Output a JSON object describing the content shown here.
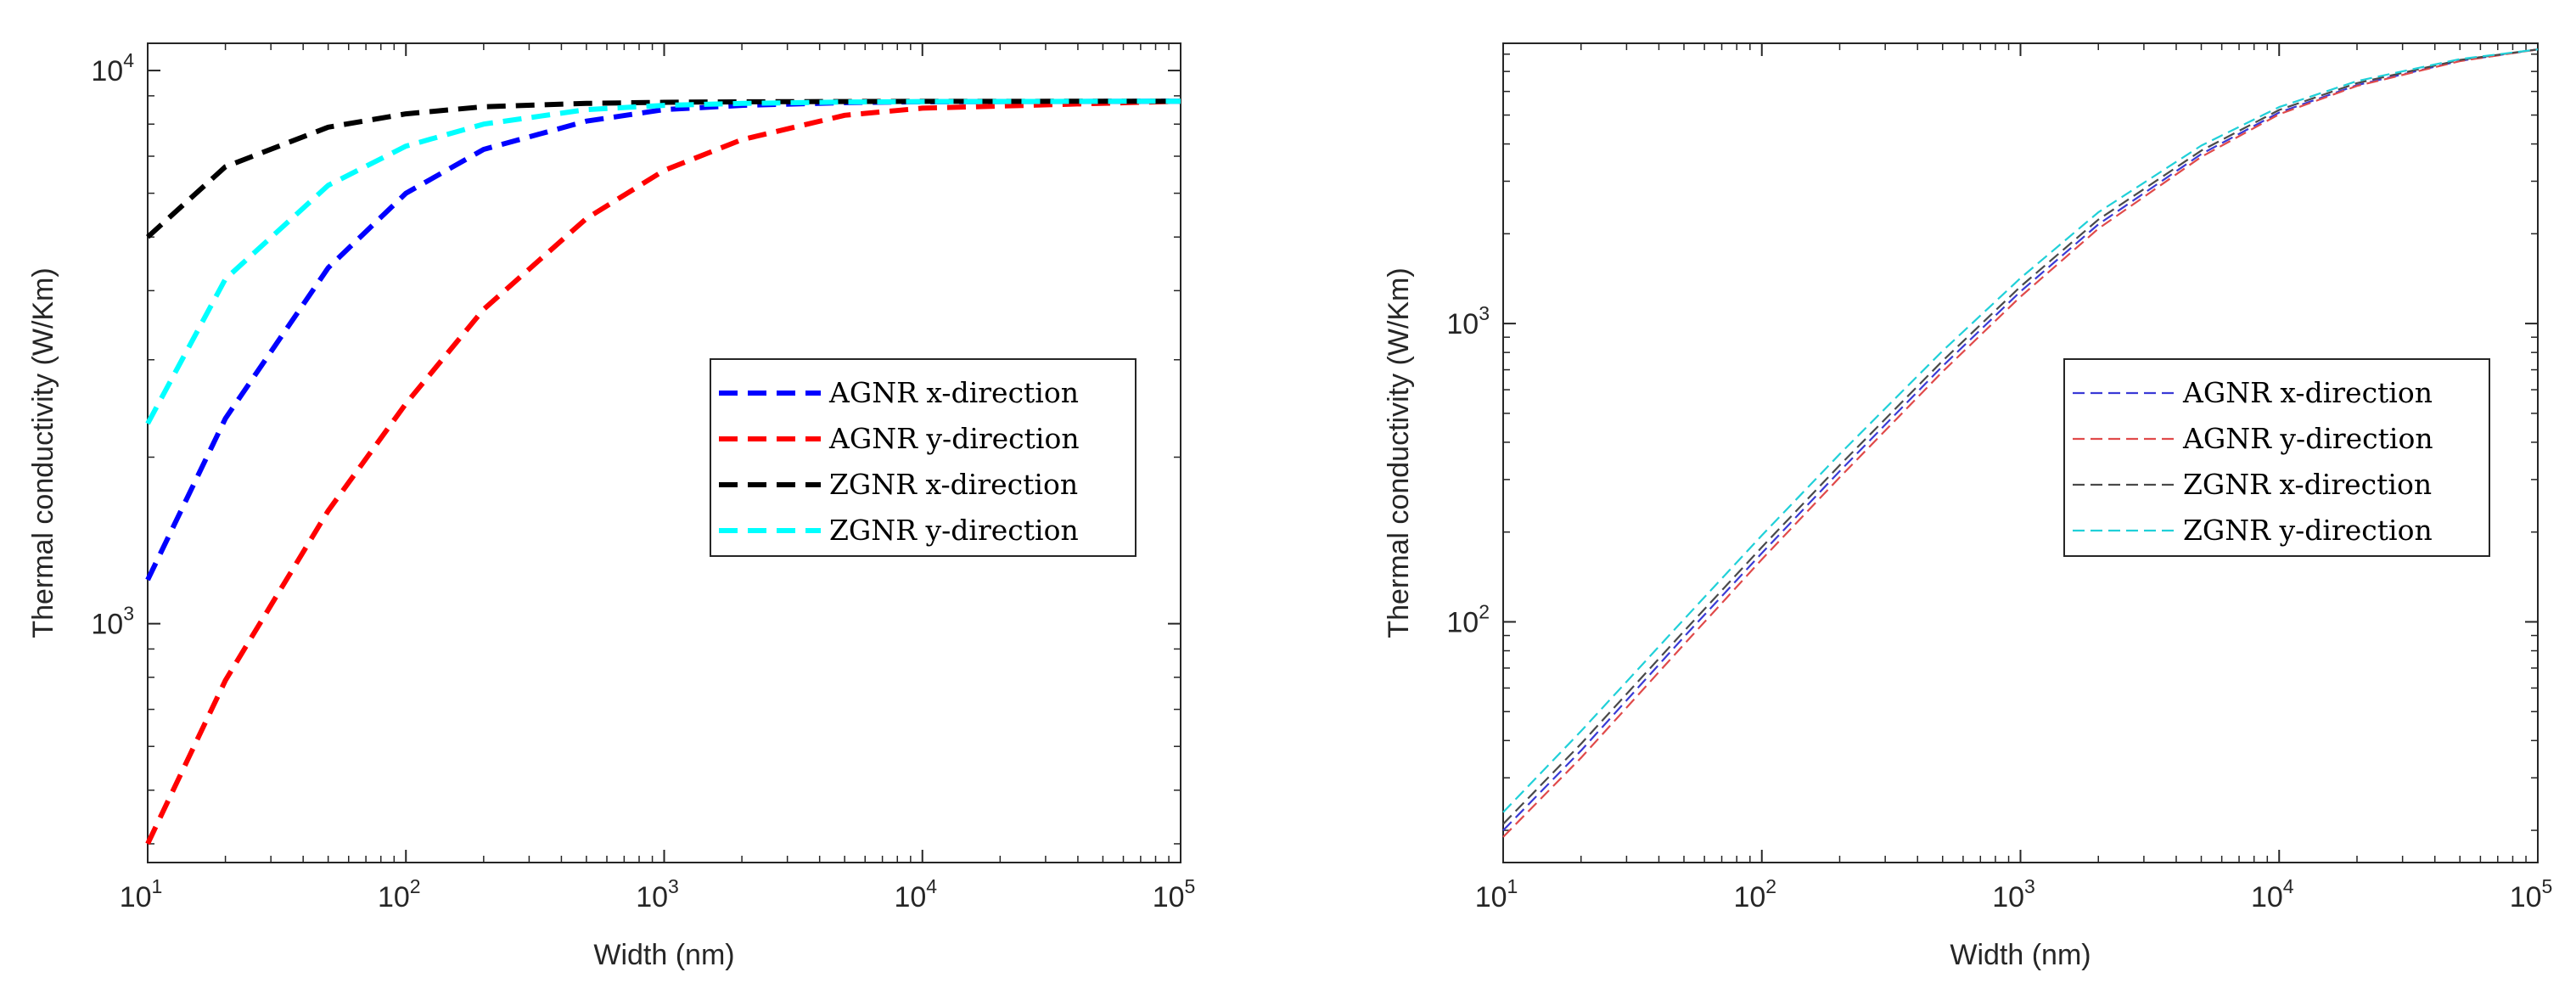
{
  "chart_data": [
    {
      "type": "line",
      "xscale": "log",
      "yscale": "log",
      "xlabel": "Width (nm)",
      "ylabel": "Thermal conductivity (W/Km)",
      "xlim": [
        10,
        100000
      ],
      "ylim": [
        370,
        11200
      ],
      "xticks": [
        {
          "base": "10",
          "exp": "1",
          "value": 10
        },
        {
          "base": "10",
          "exp": "2",
          "value": 100
        },
        {
          "base": "10",
          "exp": "3",
          "value": 1000
        },
        {
          "base": "10",
          "exp": "4",
          "value": 10000
        },
        {
          "base": "10",
          "exp": "5",
          "value": 100000
        }
      ],
      "yticks": [
        {
          "base": "10",
          "exp": "3",
          "value": 1000
        },
        {
          "base": "10",
          "exp": "4",
          "value": 10000
        }
      ],
      "legend_position": "center-right",
      "line_style": "dashed-thick",
      "x": [
        10,
        20,
        50,
        100,
        200,
        500,
        1000,
        2000,
        5000,
        10000,
        100000
      ],
      "series": [
        {
          "name": "AGNR x-direction",
          "color": "#0000ff",
          "values": [
            1200,
            2350,
            4400,
            6000,
            7200,
            8100,
            8500,
            8650,
            8750,
            8780,
            8800
          ]
        },
        {
          "name": "AGNR y-direction",
          "color": "#ff0000",
          "values": [
            400,
            790,
            1600,
            2500,
            3700,
            5400,
            6600,
            7500,
            8300,
            8550,
            8800
          ]
        },
        {
          "name": "ZGNR x-direction",
          "color": "#000000",
          "values": [
            5000,
            6700,
            7900,
            8350,
            8600,
            8720,
            8760,
            8780,
            8790,
            8795,
            8800
          ]
        },
        {
          "name": "ZGNR y-direction",
          "color": "#00ffff",
          "values": [
            2300,
            4200,
            6200,
            7300,
            8000,
            8500,
            8650,
            8720,
            8770,
            8785,
            8800
          ]
        }
      ]
    },
    {
      "type": "line",
      "xscale": "log",
      "yscale": "log",
      "xlabel": "Width (nm)",
      "ylabel": "Thermal conductivity (W/Km)",
      "xlim": [
        10,
        100000
      ],
      "ylim": [
        15.6,
        8700
      ],
      "xticks": [
        {
          "base": "10",
          "exp": "1",
          "value": 10
        },
        {
          "base": "10",
          "exp": "2",
          "value": 100
        },
        {
          "base": "10",
          "exp": "3",
          "value": 1000
        },
        {
          "base": "10",
          "exp": "4",
          "value": 10000
        },
        {
          "base": "10",
          "exp": "5",
          "value": 100000
        }
      ],
      "yticks": [
        {
          "base": "10",
          "exp": "2",
          "value": 100
        },
        {
          "base": "10",
          "exp": "3",
          "value": 1000
        }
      ],
      "legend_position": "center-right",
      "line_style": "dashed-thin",
      "x": [
        10,
        20,
        50,
        100,
        200,
        500,
        1000,
        2000,
        5000,
        10000,
        20000,
        50000,
        100000
      ],
      "series": [
        {
          "name": "AGNR x-direction",
          "color": "#3a3ad6",
          "values": [
            20,
            37,
            89,
            170,
            320,
            720,
            1280,
            2150,
            3700,
            5100,
            6300,
            7600,
            8300
          ]
        },
        {
          "name": "AGNR y-direction",
          "color": "#e04a4a",
          "values": [
            19,
            35,
            84,
            162,
            305,
            690,
            1230,
            2080,
            3620,
            5030,
            6260,
            7580,
            8300
          ]
        },
        {
          "name": "ZGNR x-direction",
          "color": "#4a4a4a",
          "values": [
            21,
            39,
            93,
            178,
            335,
            750,
            1330,
            2230,
            3800,
            5200,
            6400,
            7650,
            8300
          ]
        },
        {
          "name": "ZGNR y-direction",
          "color": "#20d0d8",
          "values": [
            23,
            43,
            102,
            195,
            365,
            810,
            1420,
            2360,
            3950,
            5320,
            6500,
            7700,
            8300
          ]
        }
      ]
    }
  ]
}
